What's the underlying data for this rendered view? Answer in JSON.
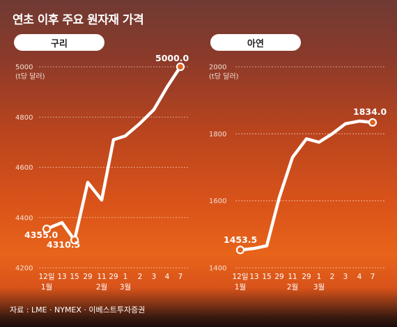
{
  "title": "연초 이후 주요 원자재 가격",
  "source": "자료 : LME · NYMEX · 이베스트투자증권",
  "chart_data": [
    {
      "type": "line",
      "title": "구리",
      "unit": "(t당 달러)",
      "ylim": [
        4200,
        5000
      ],
      "yticks": [
        4200,
        4400,
        4600,
        4800,
        5000
      ],
      "x_labels": [
        "12일",
        "13",
        "15",
        "29",
        "11",
        "29",
        "1",
        "2",
        "3",
        "4",
        "7"
      ],
      "month_labels": [
        {
          "label": "1월",
          "index": 0
        },
        {
          "label": "2월",
          "index": 4
        },
        {
          "label": "3월",
          "index": 6
        }
      ],
      "values": [
        4355,
        4380,
        4310.5,
        4540,
        4470,
        4710,
        4725,
        4775,
        4830,
        4920,
        5000
      ],
      "annotations": [
        {
          "index": 0,
          "text": "4355.0"
        },
        {
          "index": 2,
          "text": "4310.5"
        },
        {
          "index": 10,
          "text": "5000.0"
        }
      ],
      "grid": true
    },
    {
      "type": "line",
      "title": "아연",
      "unit": "(t당 달러)",
      "ylim": [
        1400,
        2000
      ],
      "yticks": [
        1400,
        1600,
        1800,
        2000
      ],
      "x_labels": [
        "12일",
        "13",
        "15",
        "29",
        "11",
        "29",
        "1",
        "2",
        "3",
        "4",
        "7"
      ],
      "month_labels": [
        {
          "label": "1월",
          "index": 0
        },
        {
          "label": "2월",
          "index": 4
        },
        {
          "label": "3월",
          "index": 6
        }
      ],
      "values": [
        1453.5,
        1458,
        1466,
        1610,
        1730,
        1785,
        1775,
        1800,
        1830,
        1838,
        1834
      ],
      "annotations": [
        {
          "index": 0,
          "text": "1453.5"
        },
        {
          "index": 10,
          "text": "1834.0"
        }
      ],
      "grid": true
    }
  ]
}
